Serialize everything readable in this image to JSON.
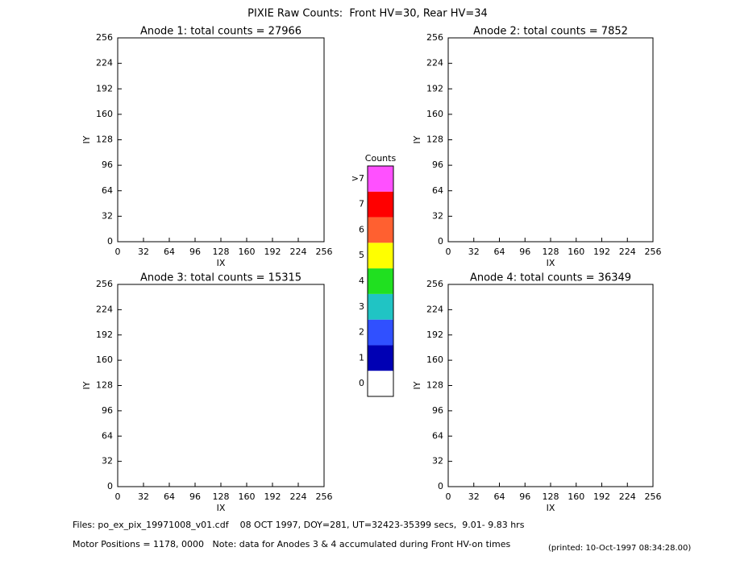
{
  "title": "PIXIE Raw Counts:  Front HV=30, Rear HV=34",
  "chart_data": [
    {
      "type": "heatmap",
      "title": "Anode 1: total counts = 27966",
      "xlabel": "IX",
      "ylabel": "IY",
      "xlim": [
        0,
        256
      ],
      "ylim": [
        0,
        256
      ],
      "xticks": [
        0,
        32,
        64,
        96,
        128,
        160,
        192,
        224,
        256
      ],
      "yticks": [
        0,
        32,
        64,
        96,
        128,
        160,
        192,
        224,
        256
      ]
    },
    {
      "type": "heatmap",
      "title": "Anode 2: total counts = 7852",
      "xlabel": "IX",
      "ylabel": "IY",
      "xlim": [
        0,
        256
      ],
      "ylim": [
        0,
        256
      ],
      "xticks": [
        0,
        32,
        64,
        96,
        128,
        160,
        192,
        224,
        256
      ],
      "yticks": [
        0,
        32,
        64,
        96,
        128,
        160,
        192,
        224,
        256
      ]
    },
    {
      "type": "heatmap",
      "title": "Anode 3: total counts = 15315",
      "xlabel": "IX",
      "ylabel": "IY",
      "xlim": [
        0,
        256
      ],
      "ylim": [
        0,
        256
      ],
      "xticks": [
        0,
        32,
        64,
        96,
        128,
        160,
        192,
        224,
        256
      ],
      "yticks": [
        0,
        32,
        64,
        96,
        128,
        160,
        192,
        224,
        256
      ]
    },
    {
      "type": "heatmap",
      "title": "Anode 4: total counts = 36349",
      "xlabel": "IX",
      "ylabel": "IY",
      "xlim": [
        0,
        256
      ],
      "ylim": [
        0,
        256
      ],
      "xticks": [
        0,
        32,
        64,
        96,
        128,
        160,
        192,
        224,
        256
      ],
      "yticks": [
        0,
        32,
        64,
        96,
        128,
        160,
        192,
        224,
        256
      ]
    }
  ],
  "colorbar": {
    "title": "Counts",
    "labels": [
      "0",
      "1",
      "2",
      "3",
      "4",
      "5",
      "6",
      "7",
      ">7"
    ],
    "colors": [
      "#ffffff",
      "#0000b4",
      "#3050ff",
      "#20c4c4",
      "#20e020",
      "#ffff00",
      "#ff6030",
      "#ff0000",
      "#ff50ff"
    ]
  },
  "footer": {
    "files": "Files: po_ex_pix_19971008_v01.cdf    08 OCT 1997, DOY=281, UT=32423-35399 secs,  9.01- 9.83 hrs",
    "motor": "Motor Positions = 1178, 0000   Note: data for Anodes 3 & 4 accumulated during Front HV-on times",
    "printed": "(printed: 10-Oct-1997 08:34:28.00)"
  }
}
